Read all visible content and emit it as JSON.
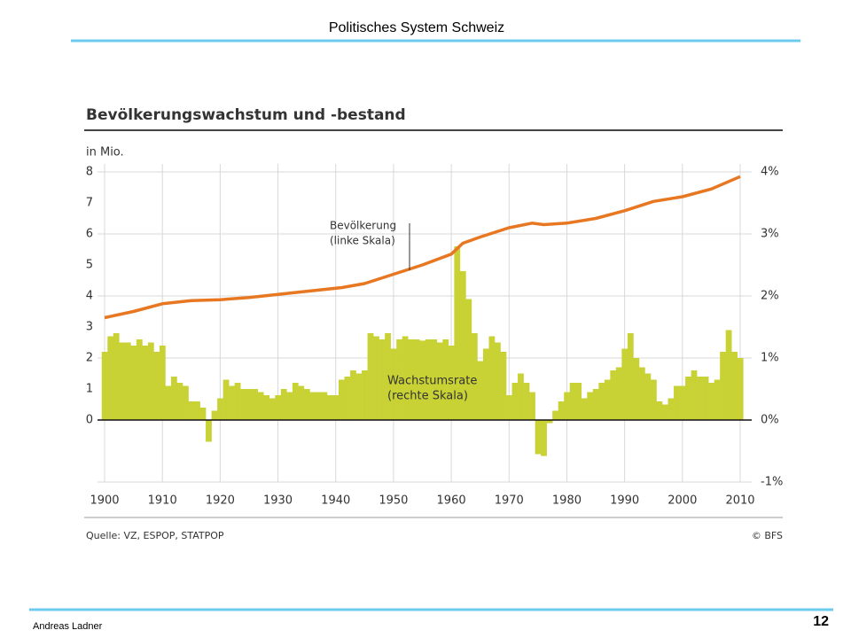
{
  "slide": {
    "header": "Politisches System Schweiz",
    "author": "Andreas Ladner",
    "page": "12"
  },
  "chart_data": {
    "type": "bar-line",
    "title": "Bevölkerungswachstum und -bestand",
    "ylabel": "in Mio.",
    "source": "Quelle: VZ, ESPOP, STATPOP",
    "credit": "© BFS",
    "annotations": [
      [
        "Bevölkerung",
        "(linke Skala)"
      ],
      [
        "Wachstumsrate",
        "(rechte Skala)"
      ]
    ],
    "xlim": [
      1900,
      2010
    ],
    "xticks": [
      1900,
      1910,
      1920,
      1930,
      1940,
      1950,
      1960,
      1970,
      1980,
      1990,
      2000,
      2010
    ],
    "ylim": [
      -2,
      8
    ],
    "yticks": [
      0,
      1,
      2,
      3,
      4,
      5,
      6,
      7,
      8
    ],
    "y2lim": [
      -1,
      4
    ],
    "y2ticks": [
      {
        "value": -1,
        "label": "-1%"
      },
      {
        "value": 0,
        "label": "0%"
      },
      {
        "value": 1,
        "label": "1%"
      },
      {
        "value": 2,
        "label": "2%"
      },
      {
        "value": 3,
        "label": "3%"
      },
      {
        "value": 4,
        "label": "4%"
      }
    ],
    "grid": true,
    "series": [
      {
        "kind": "line",
        "axis": "y",
        "color": "#e87722",
        "x": [
          1900,
          1905,
          1910,
          1915,
          1920,
          1925,
          1930,
          1935,
          1941,
          1945,
          1950,
          1955,
          1960,
          1962,
          1965,
          1970,
          1974,
          1976,
          1980,
          1985,
          1990,
          1995,
          2000,
          2005,
          2010
        ],
        "values": [
          3.3,
          3.5,
          3.75,
          3.85,
          3.88,
          3.95,
          4.05,
          4.15,
          4.27,
          4.4,
          4.7,
          5.0,
          5.35,
          5.7,
          5.9,
          6.2,
          6.35,
          6.3,
          6.35,
          6.5,
          6.75,
          7.05,
          7.2,
          7.45,
          7.85
        ]
      },
      {
        "kind": "bar",
        "axis": "y2",
        "color": "#c9d235",
        "x": [
          1900,
          1901,
          1902,
          1903,
          1904,
          1905,
          1906,
          1907,
          1908,
          1909,
          1910,
          1911,
          1912,
          1913,
          1914,
          1915,
          1916,
          1917,
          1918,
          1919,
          1920,
          1921,
          1922,
          1923,
          1924,
          1925,
          1926,
          1927,
          1928,
          1929,
          1930,
          1931,
          1932,
          1933,
          1934,
          1935,
          1936,
          1937,
          1938,
          1939,
          1940,
          1941,
          1942,
          1943,
          1944,
          1945,
          1946,
          1947,
          1948,
          1949,
          1950,
          1951,
          1952,
          1953,
          1954,
          1955,
          1956,
          1957,
          1958,
          1959,
          1960,
          1961,
          1962,
          1963,
          1964,
          1965,
          1966,
          1967,
          1968,
          1969,
          1970,
          1971,
          1972,
          1973,
          1974,
          1975,
          1976,
          1977,
          1978,
          1979,
          1980,
          1981,
          1982,
          1983,
          1984,
          1985,
          1986,
          1987,
          1988,
          1989,
          1990,
          1991,
          1992,
          1993,
          1994,
          1995,
          1996,
          1997,
          1998,
          1999,
          2000,
          2001,
          2002,
          2003,
          2004,
          2005,
          2006,
          2007,
          2008,
          2009,
          2010
        ],
        "values": [
          1.1,
          1.35,
          1.4,
          1.25,
          1.25,
          1.2,
          1.3,
          1.2,
          1.25,
          1.1,
          1.2,
          0.55,
          0.7,
          0.6,
          0.55,
          0.3,
          0.3,
          0.2,
          -0.35,
          0.15,
          0.35,
          0.65,
          0.55,
          0.6,
          0.5,
          0.5,
          0.5,
          0.45,
          0.4,
          0.35,
          0.4,
          0.5,
          0.45,
          0.6,
          0.55,
          0.5,
          0.45,
          0.45,
          0.45,
          0.4,
          0.4,
          0.65,
          0.7,
          0.8,
          0.75,
          0.8,
          1.4,
          1.35,
          1.3,
          1.4,
          1.15,
          1.3,
          1.35,
          1.3,
          1.3,
          1.28,
          1.3,
          1.3,
          1.25,
          1.3,
          1.2,
          2.8,
          2.4,
          1.95,
          1.4,
          0.95,
          1.15,
          1.35,
          1.25,
          1.1,
          0.4,
          0.6,
          0.75,
          0.6,
          0.45,
          -0.55,
          -0.58,
          -0.05,
          0.15,
          0.3,
          0.45,
          0.6,
          0.6,
          0.35,
          0.45,
          0.5,
          0.6,
          0.65,
          0.8,
          0.85,
          1.15,
          1.4,
          1.0,
          0.85,
          0.75,
          0.65,
          0.3,
          0.25,
          0.35,
          0.55,
          0.55,
          0.7,
          0.8,
          0.7,
          0.7,
          0.6,
          0.65,
          1.1,
          1.45,
          1.1,
          1.0
        ]
      }
    ]
  }
}
